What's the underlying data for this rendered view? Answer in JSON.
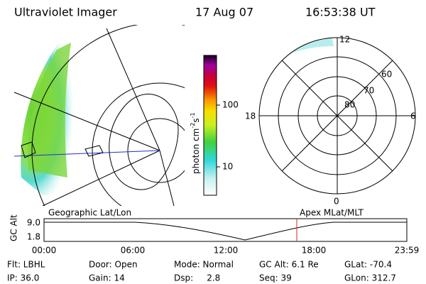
{
  "header": {
    "title": "Ultraviolet Imager",
    "date": "17 Aug 07",
    "time": "16:53:38 UT"
  },
  "colorbar": {
    "label": {
      "base": "photon cm",
      "exp1": "-2",
      "unit2": "s",
      "exp2": "-1"
    },
    "ticks": [
      "100",
      "10"
    ]
  },
  "polar": {
    "mlt_labels": [
      "12",
      "18",
      "6",
      "0"
    ],
    "lat_labels": [
      "60",
      "70",
      "80"
    ]
  },
  "timeline": {
    "left_title": "Geographic Lat/Lon",
    "right_title": "Apex MLat/MLT",
    "axis_label": "GC Alt",
    "yticks": [
      "9.0",
      "1.8"
    ],
    "xticks": [
      "00:00",
      "06:00",
      "12:00",
      "18:00",
      "23:59"
    ]
  },
  "footer": {
    "rows": [
      [
        "Flt: LBHL",
        "Door: Open",
        "Mode: Normal",
        "GC Alt: 6.1 Re",
        "GLat: -70.4"
      ],
      [
        "IP: 36.0",
        "Gain: 14",
        "Dsp:     2.8",
        "Seq: 39",
        "GLon: 312.7"
      ]
    ]
  }
}
